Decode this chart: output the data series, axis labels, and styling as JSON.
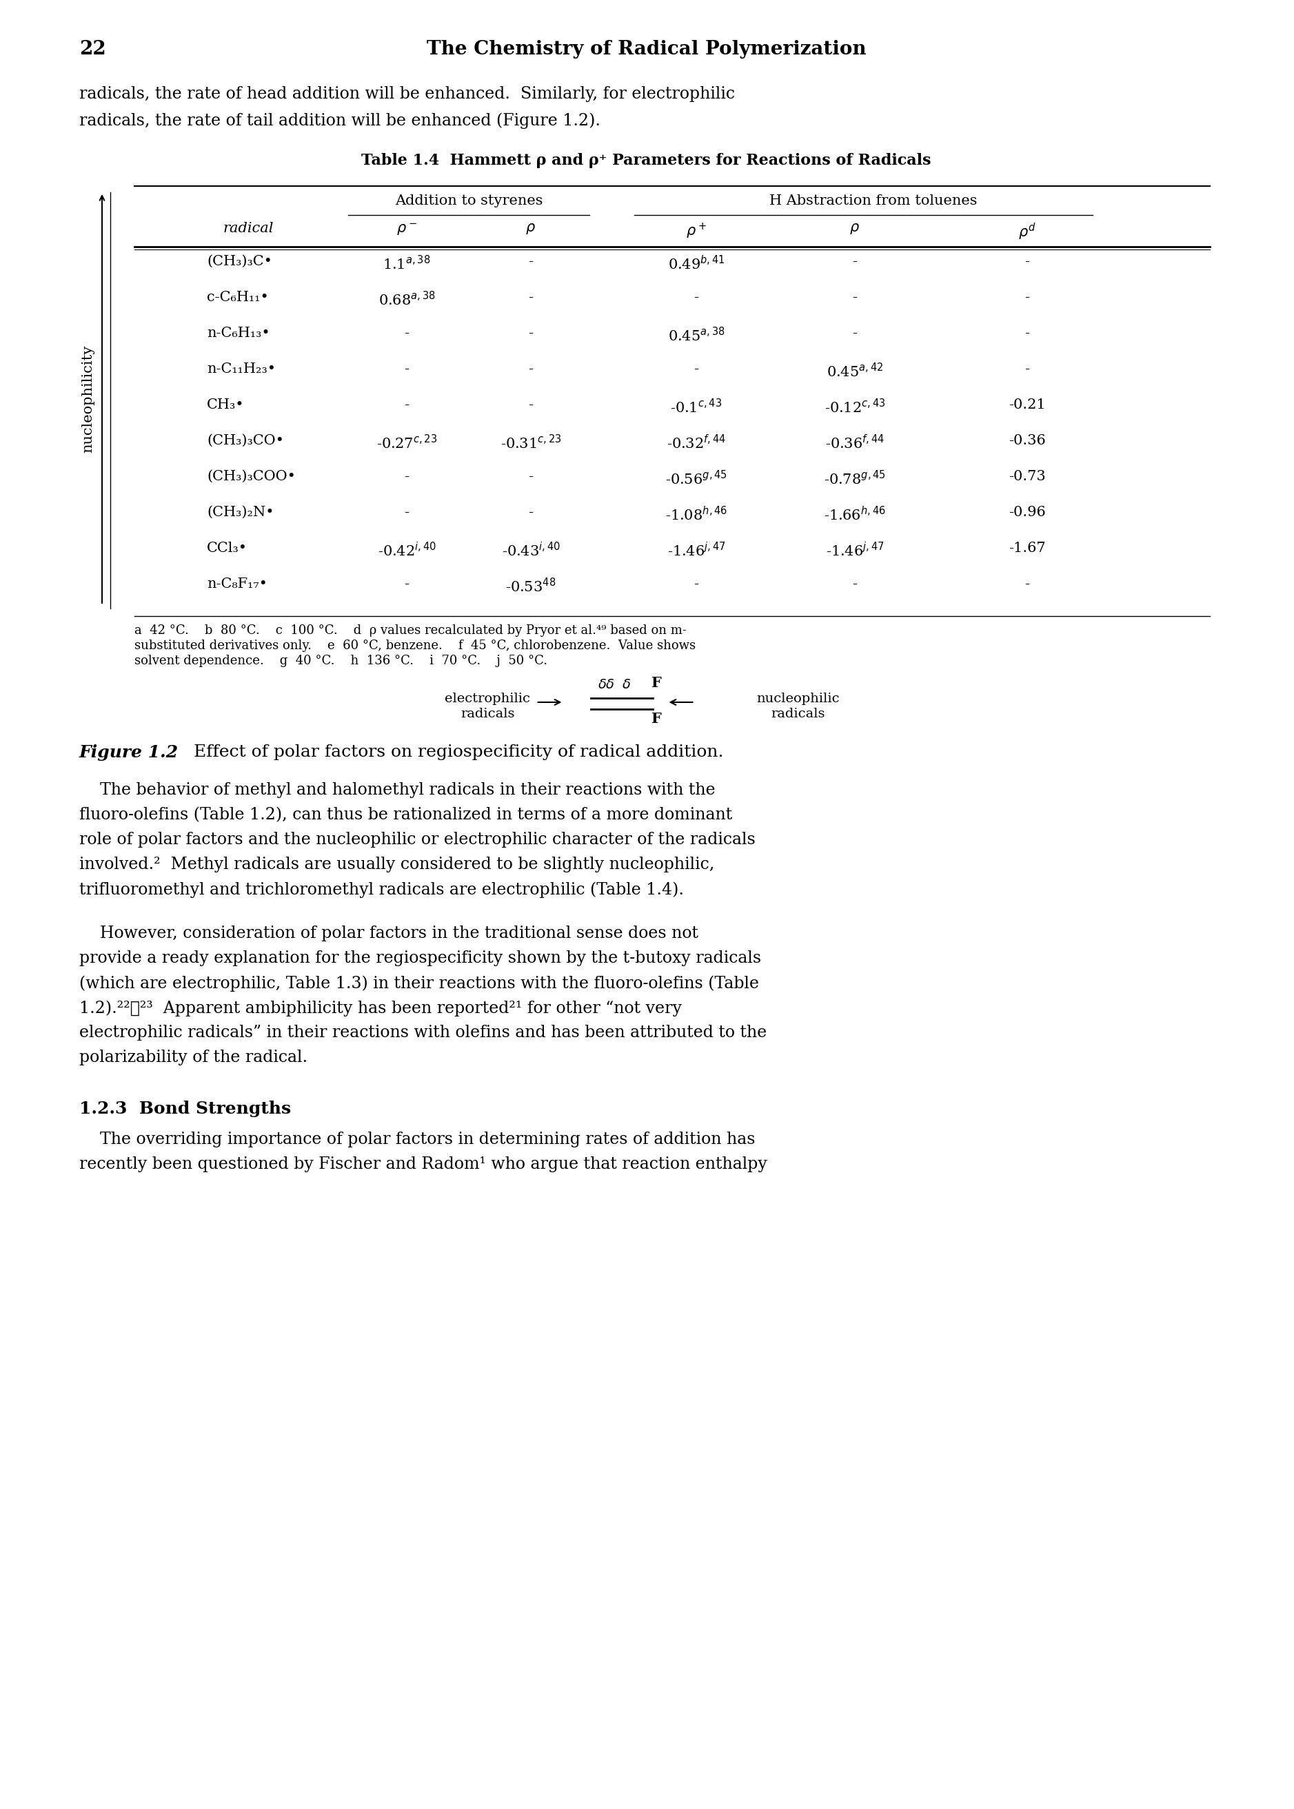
{
  "page_number": "22",
  "header": "The Chemistry of Radical Polymerization",
  "intro_text_line1": "radicals, the rate of head addition will be enhanced.  Similarly, for electrophilic",
  "intro_text_line2": "radicals, the rate of tail addition will be enhanced (Figure 1.2).",
  "table_title": "Table 1.4  Hammett ρ and ρ⁺ Parameters for Reactions of Radicals",
  "col_group1": "Addition to styrenes",
  "col_group2": "H Abstraction from toluenes",
  "footnote_line1": "a  42 °C.    b  80 °C.    c  100 °C.    d  ρ values recalculated by Pryor et al.⁴⁹ based on m-",
  "footnote_line2": "substituted derivatives only.    e  60 °C, benzene.    f  45 °C, chlorobenzene.  Value shows",
  "footnote_line3": "solvent dependence.    g  40 °C.    h  136 °C.    i  70 °C.    j  50 °C.",
  "figure_caption_bold": "Figure 1.2",
  "figure_caption_rest": "  Effect of polar factors on regiospecificity of radical addition.",
  "body_p1": [
    "    The behavior of methyl and halomethyl radicals in their reactions with the",
    "fluoro-olefins (Table 1.2), can thus be rationalized in terms of a more dominant",
    "role of polar factors and the nucleophilic or electrophilic character of the radicals",
    "involved.²  Methyl radicals are usually considered to be slightly nucleophilic,",
    "trifluoromethyl and trichloromethyl radicals are electrophilic (Table 1.4)."
  ],
  "body_p2": [
    "    However, consideration of polar factors in the traditional sense does not",
    "provide a ready explanation for the regiospecificity shown by the t-butoxy radicals",
    "(which are electrophilic, Table 1.3) in their reactions with the fluoro-olefins (Table",
    "1.2).²²ⰻ²³  Apparent ambiphilicity has been reported²¹ for other “not very",
    "electrophilic radicals” in their reactions with olefins and has been attributed to the",
    "polarizability of the radical."
  ],
  "section_head": "1.2.3  Bond Strengths",
  "body_p3": [
    "    The overriding importance of polar factors in determining rates of addition has",
    "recently been questioned by Fischer and Radom¹ who argue that reaction enthalpy"
  ],
  "row_data": [
    [
      "(CH₃)₃C•",
      "1.1$^{a,38}$",
      "-",
      "0.49$^{b,41}$",
      "-",
      "-"
    ],
    [
      "c-C₆H₁₁•",
      "0.68$^{a,38}$",
      "-",
      "-",
      "-",
      "-"
    ],
    [
      "n-C₆H₁₃•",
      "-",
      "-",
      "0.45$^{a,38}$",
      "-",
      "-"
    ],
    [
      "n-C₁₁H₂₃•",
      "-",
      "-",
      "-",
      "0.45$^{a,42}$",
      "-"
    ],
    [
      "CH₃•",
      "-",
      "-",
      "-0.1$^{c,43}$",
      "-0.12$^{c,43}$",
      "-0.21"
    ],
    [
      "(CH₃)₃CO•",
      "-0.27$^{c,23}$",
      "-0.31$^{c,23}$",
      "-0.32$^{f,44}$",
      "-0.36$^{f,44}$",
      "-0.36"
    ],
    [
      "(CH₃)₃COO•",
      "-",
      "-",
      "-0.56$^{g,45}$",
      "-0.78$^{g,45}$",
      "-0.73"
    ],
    [
      "(CH₃)₂N•",
      "-",
      "-",
      "-1.08$^{h,46}$",
      "-1.66$^{h,46}$",
      "-0.96"
    ],
    [
      "CCl₃•",
      "-0.42$^{i,40}$",
      "-0.43$^{i,40}$",
      "-1.46$^{j,47}$",
      "-1.46$^{j,47}$",
      "-1.67"
    ],
    [
      "n-C₈F₁₇•",
      "-",
      "-0.53$^{48}$",
      "-",
      "-",
      "-"
    ]
  ]
}
